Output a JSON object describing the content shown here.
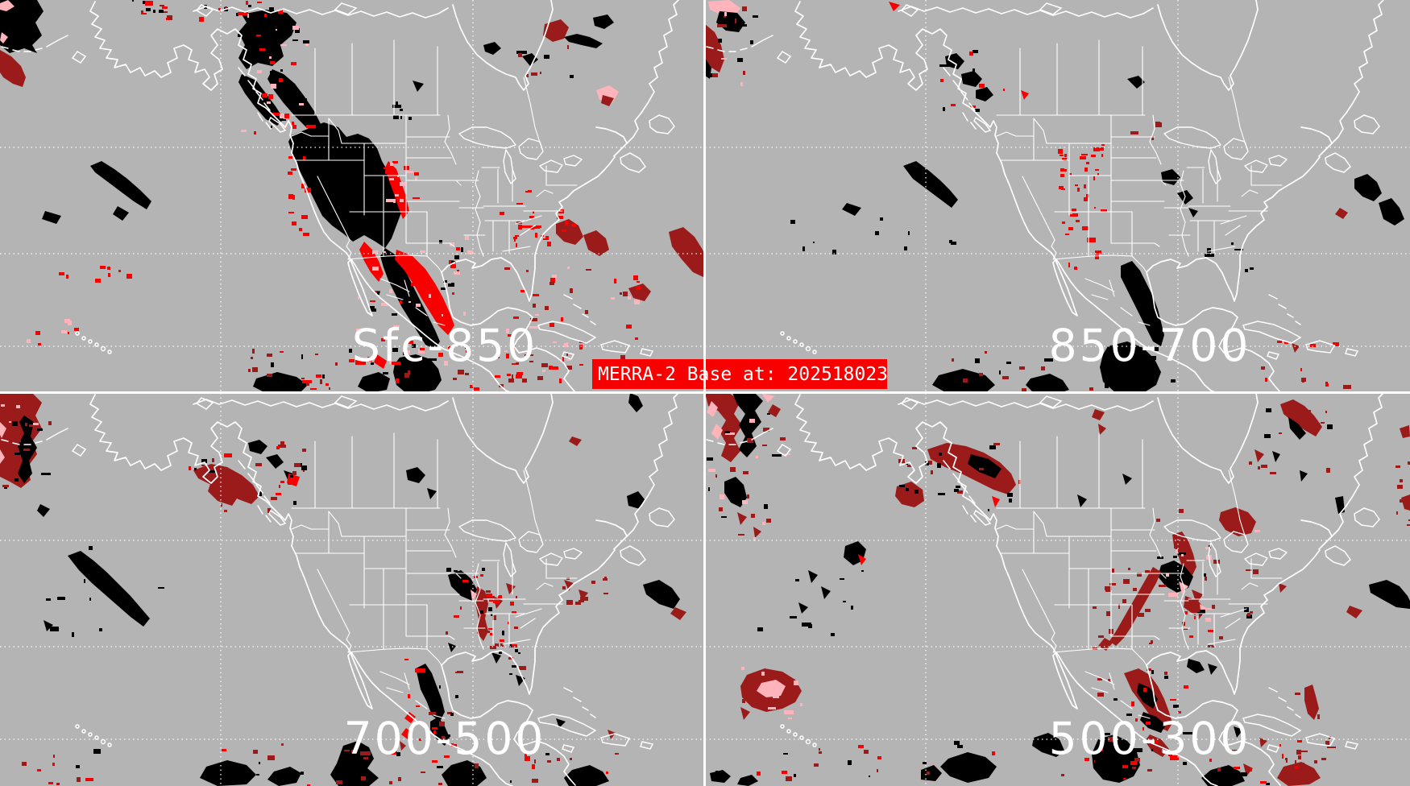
{
  "banner": {
    "text": "MERRA-2 Base at: 202518023"
  },
  "panels": [
    {
      "id": "sfc-850",
      "label": "Sfc-850",
      "position": "top-left"
    },
    {
      "id": "850-700",
      "label": "850-700",
      "position": "top-right"
    },
    {
      "id": "700-500",
      "label": "700-500",
      "position": "bottom-left"
    },
    {
      "id": "500-300",
      "label": "500-300",
      "position": "bottom-right"
    }
  ],
  "colors": {
    "background": "#b4b4b4",
    "outline": "#ffffff",
    "black": "#000000",
    "red": "#f90000",
    "dark_red": "#9b1b1b",
    "pink": "#ffb3ba",
    "banner_background": "#f90000",
    "banner_foreground": "#ffffff",
    "text": "#ffffff"
  }
}
